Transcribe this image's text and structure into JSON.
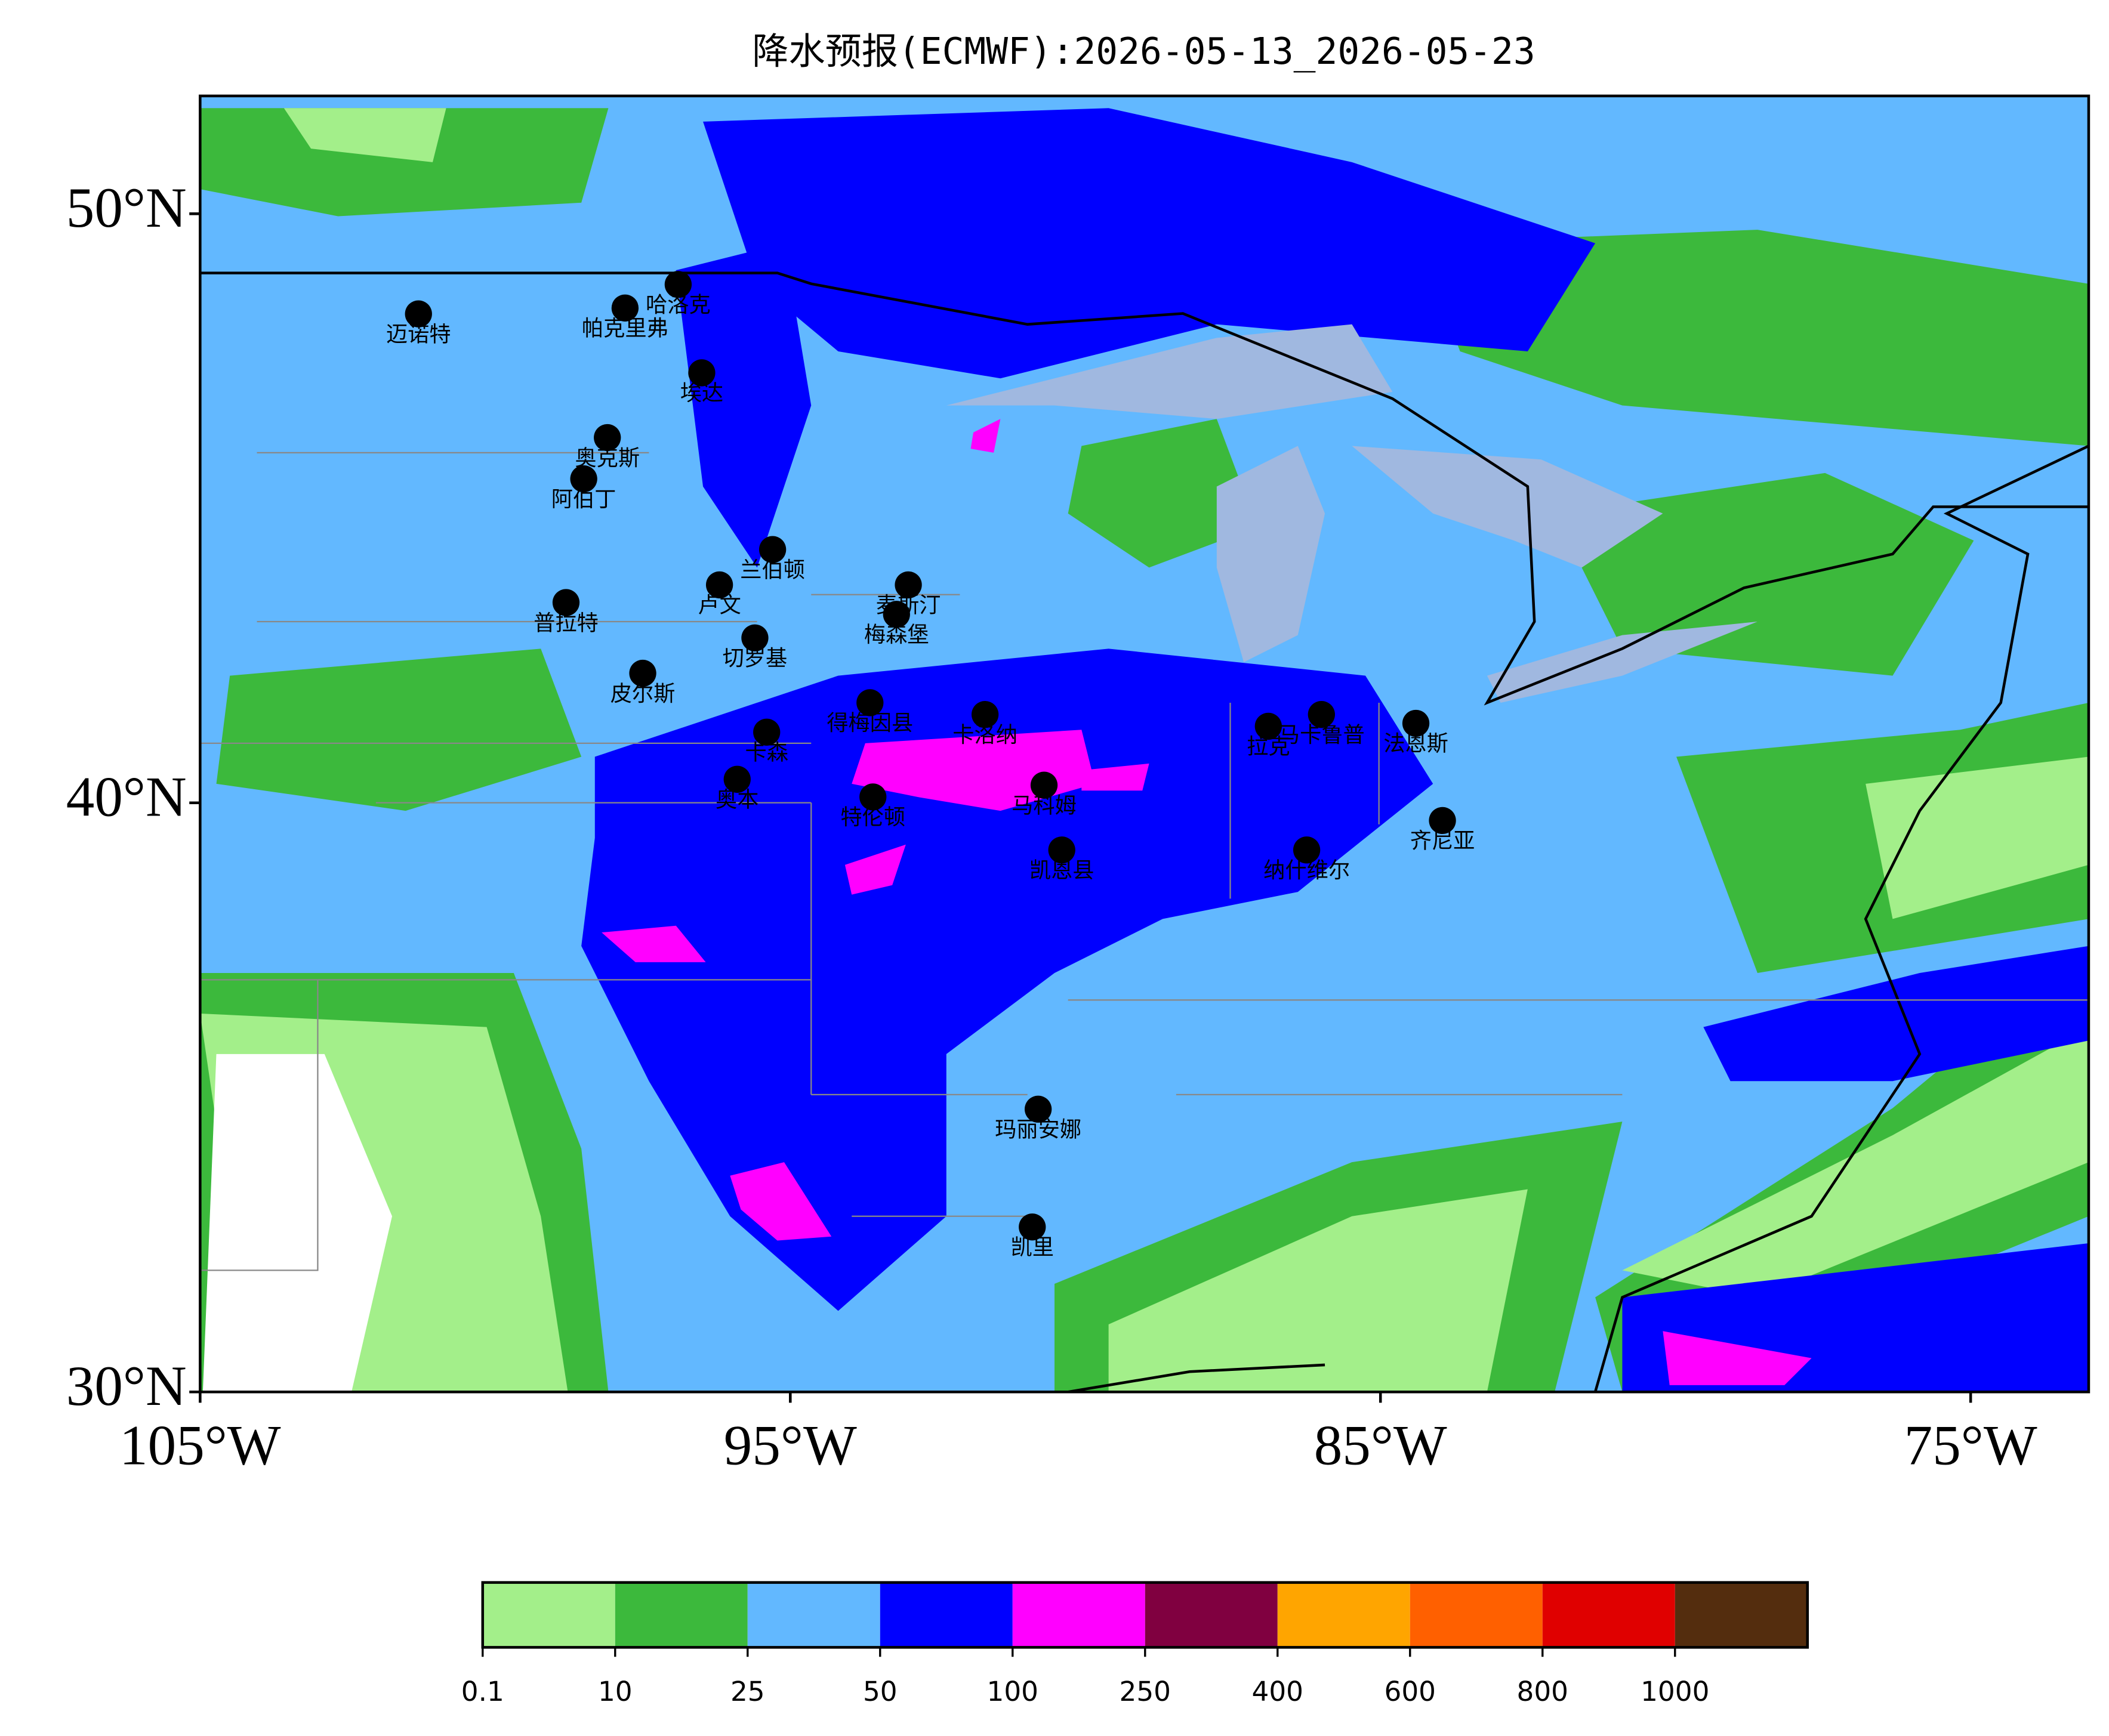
{
  "title": "降水预报(ECMWF):2026-05-13_2026-05-23",
  "map": {
    "xlim": [
      -105,
      -73
    ],
    "ylim": [
      30,
      52
    ],
    "xticks": [
      {
        "value": -105,
        "label": "105°W"
      },
      {
        "value": -95,
        "label": "95°W"
      },
      {
        "value": -85,
        "label": "85°W"
      },
      {
        "value": -75,
        "label": "75°W"
      }
    ],
    "yticks": [
      {
        "value": 30,
        "label": "30°N"
      },
      {
        "value": 40,
        "label": "40°N"
      },
      {
        "value": 50,
        "label": "50°N"
      }
    ],
    "cities": [
      {
        "name": "迈诺特",
        "lon": -101.3,
        "lat": 48.3
      },
      {
        "name": "帕克里弗",
        "lon": -97.8,
        "lat": 48.4
      },
      {
        "name": "哈洛克",
        "lon": -96.9,
        "lat": 48.8
      },
      {
        "name": "埃达",
        "lon": -96.5,
        "lat": 47.3
      },
      {
        "name": "奥克斯",
        "lon": -98.1,
        "lat": 46.2
      },
      {
        "name": "阿伯丁",
        "lon": -98.5,
        "lat": 45.5
      },
      {
        "name": "兰伯顿",
        "lon": -95.3,
        "lat": 44.3
      },
      {
        "name": "卢文",
        "lon": -96.2,
        "lat": 43.7
      },
      {
        "name": "普拉特",
        "lon": -98.8,
        "lat": 43.4
      },
      {
        "name": "麦斯汀",
        "lon": -93.0,
        "lat": 43.7
      },
      {
        "name": "梅森堡",
        "lon": -93.2,
        "lat": 43.2
      },
      {
        "name": "切罗基",
        "lon": -95.6,
        "lat": 42.8
      },
      {
        "name": "皮尔斯",
        "lon": -97.5,
        "lat": 42.2
      },
      {
        "name": "得梅因县",
        "lon": -93.65,
        "lat": 41.7
      },
      {
        "name": "卡洛纳",
        "lon": -91.7,
        "lat": 41.5
      },
      {
        "name": "卡森",
        "lon": -95.4,
        "lat": 41.2
      },
      {
        "name": "奥本",
        "lon": -95.9,
        "lat": 40.4
      },
      {
        "name": "特伦顿",
        "lon": -93.6,
        "lat": 40.1
      },
      {
        "name": "马科姆",
        "lon": -90.7,
        "lat": 40.3
      },
      {
        "name": "凯恩县",
        "lon": -90.4,
        "lat": 39.2
      },
      {
        "name": "拉克",
        "lon": -86.9,
        "lat": 41.3
      },
      {
        "name": "马卡鲁普",
        "lon": -86.0,
        "lat": 41.5
      },
      {
        "name": "法恩斯",
        "lon": -84.4,
        "lat": 41.35
      },
      {
        "name": "齐尼亚",
        "lon": -83.95,
        "lat": 39.7
      },
      {
        "name": "纳什维尔",
        "lon": -86.25,
        "lat": 39.2
      },
      {
        "name": "玛丽安娜",
        "lon": -90.8,
        "lat": 34.8
      },
      {
        "name": "凯里",
        "lon": -90.9,
        "lat": 32.8
      }
    ]
  },
  "colorbar": {
    "bounds": [
      0.1,
      10,
      25,
      50,
      100,
      250,
      400,
      600,
      800,
      1000
    ],
    "colors": [
      "#a3ef8a",
      "#3cb93c",
      "#62b8ff",
      "#0000ff",
      "#ff00ff",
      "#800040",
      "#ffa500",
      "#ff6000",
      "#e00000",
      "#542d0e"
    ]
  }
}
